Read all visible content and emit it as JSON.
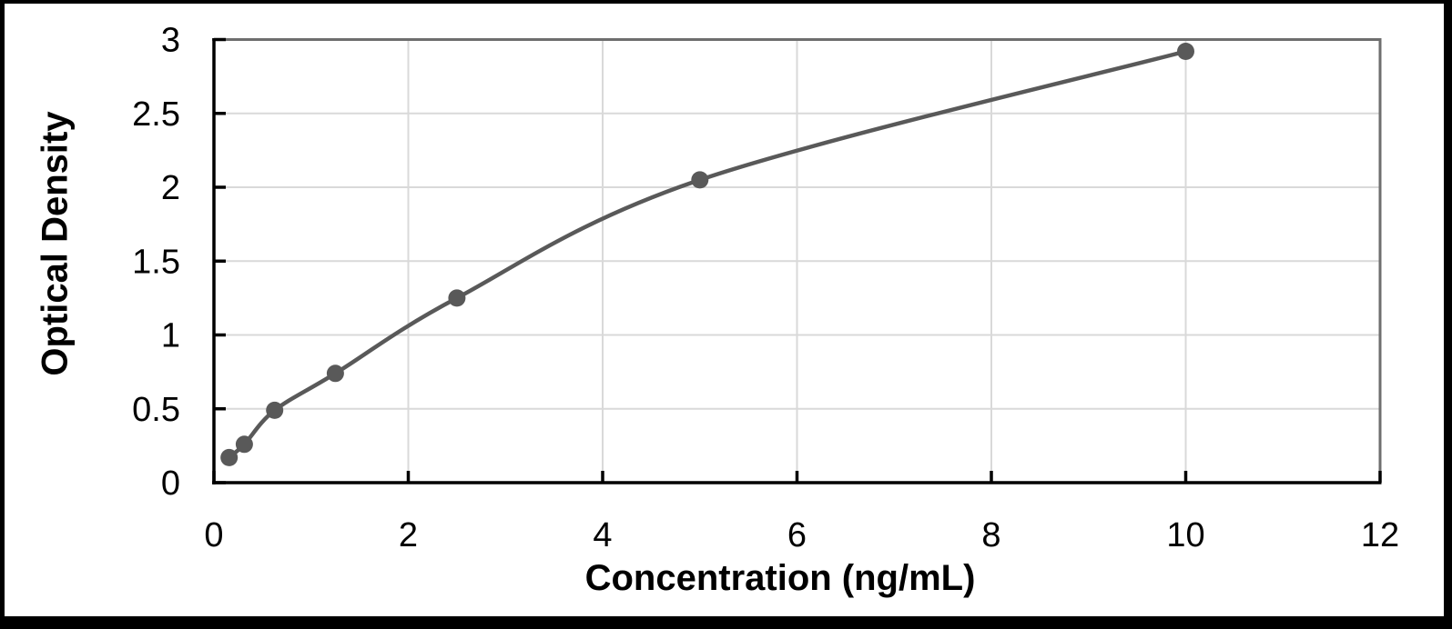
{
  "chart_data": {
    "type": "scatter",
    "title": "",
    "xlabel": "Concentration (ng/mL)",
    "ylabel": "Optical Density",
    "x": [
      0.156,
      0.3125,
      0.625,
      1.25,
      2.5,
      5,
      10
    ],
    "y": [
      0.17,
      0.26,
      0.49,
      0.74,
      1.25,
      2.05,
      2.92
    ],
    "xlim": [
      0,
      12
    ],
    "ylim": [
      0,
      3
    ],
    "x_ticks": [
      0,
      2,
      4,
      6,
      8,
      10,
      12
    ],
    "y_ticks": [
      0,
      0.5,
      1,
      1.5,
      2,
      2.5,
      3
    ],
    "grid": true,
    "legend": "none",
    "marker": "circle",
    "line_style": "smooth",
    "colors": {
      "series": "#595959",
      "gridline": "#d9d9d9",
      "plot_border": "#6e6e6e",
      "axis": "#000000",
      "tick_label": "#000000",
      "outer_frame": "#000000",
      "background": "#ffffff"
    }
  }
}
